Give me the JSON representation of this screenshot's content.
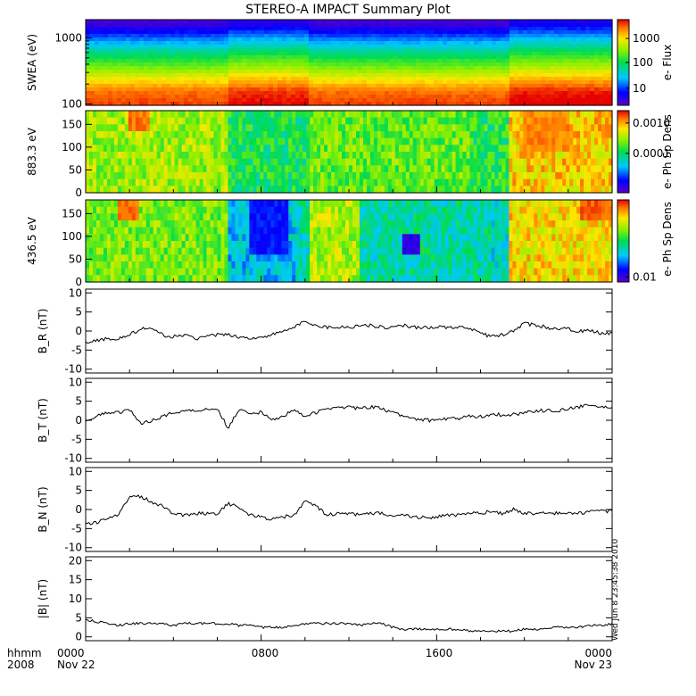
{
  "title": "STEREO-A IMPACT Summary Plot",
  "timestamp": "Wed Jun 8 23:45:38 2010",
  "colors": {
    "line": "#000000",
    "frame": "#000000"
  },
  "x_axis": {
    "row1_labels": [
      "hhmm",
      "0000",
      "0800",
      "1600",
      "0000"
    ],
    "row2_labels": [
      "2008",
      "Nov 22",
      "Nov 23"
    ]
  },
  "chart_data": [
    {
      "type": "heatmap",
      "ylabel": "SWEA (eV)",
      "yscale": "log",
      "ylim": [
        95,
        1900
      ],
      "yticks": [
        "1000",
        "100"
      ],
      "colorbar_label": "e- Flux",
      "colorbar_scale": "log",
      "colorbar_ticks": [
        "1000",
        "100",
        "10"
      ],
      "colorbar_range": [
        4,
        6000
      ],
      "description_of_bands": "high energy low flux (blue/violet) at top, mid energies green, low energies ~100 eV red/orange",
      "energy_flux_profile": {
        "energy_ev": [
          1900,
          1500,
          1200,
          1000,
          800,
          600,
          450,
          330,
          250,
          180,
          140,
          110,
          95
        ],
        "level": [
          0.02,
          0.08,
          0.18,
          0.28,
          0.38,
          0.48,
          0.56,
          0.64,
          0.74,
          0.82,
          0.9,
          0.93,
          0.95
        ]
      }
    },
    {
      "type": "heatmap",
      "ylabel": "883.3 eV",
      "ylim": [
        0,
        180
      ],
      "yticks": [
        "150",
        "100",
        "50",
        "0"
      ],
      "colorbar_label": "e- Ph Sp Dens",
      "colorbar_scale": "log",
      "colorbar_ticks": [
        "0.0010",
        "0.0001"
      ],
      "colorbar_range": [
        1e-05,
        0.0015
      ]
    },
    {
      "type": "heatmap",
      "ylabel": "436.5 eV",
      "ylim": [
        0,
        180
      ],
      "yticks": [
        "150",
        "100",
        "50",
        "0"
      ],
      "colorbar_label": "e- Ph Sp Dens",
      "colorbar_scale": "log",
      "colorbar_ticks": [
        "0.01"
      ],
      "colorbar_range": [
        0.008,
        0.05
      ]
    },
    {
      "type": "line",
      "ylabel": "B_R (nT)",
      "ylim": [
        -11,
        11
      ],
      "yticks": [
        "10",
        "5",
        "0",
        "-5",
        "-10"
      ],
      "x_hours": [
        0,
        0.5,
        1,
        1.5,
        2,
        2.5,
        3,
        3.5,
        4,
        4.5,
        5,
        5.5,
        6,
        6.5,
        7,
        7.5,
        8,
        8.5,
        9,
        9.5,
        10,
        10.5,
        11,
        11.5,
        12,
        12.5,
        13,
        13.5,
        14,
        14.5,
        15,
        15.5,
        16,
        16.5,
        17,
        17.5,
        18,
        18.5,
        19,
        19.5,
        20,
        20.5,
        21,
        21.5,
        22,
        22.5,
        23,
        23.5,
        24
      ],
      "values": [
        -3,
        -2.5,
        -2,
        -2,
        -1,
        0.5,
        0.5,
        -1,
        -1.5,
        -1,
        -2,
        -1.5,
        -1,
        -1,
        -1.5,
        -2,
        -1.5,
        -1,
        0,
        1,
        2.5,
        1.5,
        1,
        1,
        1,
        1.5,
        1.5,
        1,
        1,
        1.5,
        1,
        1,
        1,
        1,
        1,
        0.5,
        -0.5,
        -1.5,
        -1,
        0,
        2,
        1.5,
        1,
        0.5,
        0.5,
        0,
        0,
        -0.5,
        -0.5
      ]
    },
    {
      "type": "line",
      "ylabel": "B_T (nT)",
      "ylim": [
        -11,
        11
      ],
      "yticks": [
        "10",
        "5",
        "0",
        "-5",
        "-10"
      ],
      "x_hours": [
        0,
        0.5,
        1,
        1.5,
        2,
        2.5,
        3,
        3.5,
        4,
        4.5,
        5,
        5.5,
        6,
        6.5,
        7,
        7.5,
        8,
        8.5,
        9,
        9.5,
        10,
        10.5,
        11,
        11.5,
        12,
        12.5,
        13,
        13.5,
        14,
        14.5,
        15,
        15.5,
        16,
        16.5,
        17,
        17.5,
        18,
        18.5,
        19,
        19.5,
        20,
        20.5,
        21,
        21.5,
        22,
        22.5,
        23,
        23.5,
        24
      ],
      "values": [
        0,
        1,
        2,
        2,
        3,
        -1,
        0,
        1,
        2,
        2.5,
        2.5,
        3,
        3,
        -2,
        3,
        2,
        2,
        0,
        1,
        3,
        1,
        2,
        3,
        3.5,
        3.5,
        3,
        3.5,
        3,
        2,
        1,
        0.5,
        0,
        0,
        0.5,
        0.5,
        1,
        1,
        1.5,
        1.5,
        1.5,
        2,
        2.5,
        2.5,
        2.5,
        3,
        3.5,
        4,
        3.5,
        3
      ]
    },
    {
      "type": "line",
      "ylabel": "B_N (nT)",
      "ylim": [
        -11,
        11
      ],
      "yticks": [
        "10",
        "5",
        "0",
        "-5",
        "-10"
      ],
      "x_hours": [
        0,
        0.5,
        1,
        1.5,
        2,
        2.5,
        3,
        3.5,
        4,
        4.5,
        5,
        5.5,
        6,
        6.5,
        7,
        7.5,
        8,
        8.5,
        9,
        9.5,
        10,
        10.5,
        11,
        11.5,
        12,
        12.5,
        13,
        13.5,
        14,
        14.5,
        15,
        15.5,
        16,
        16.5,
        17,
        17.5,
        18,
        18.5,
        19,
        19.5,
        20,
        20.5,
        21,
        21.5,
        22,
        22.5,
        23,
        23.5,
        24
      ],
      "values": [
        -4,
        -3.5,
        -2,
        -1.5,
        3.5,
        3.5,
        2,
        1,
        -1,
        -1.5,
        -1,
        -1,
        -1,
        1.5,
        0.5,
        -1.5,
        -2,
        -2.5,
        -2,
        -1.5,
        2,
        1,
        -1.5,
        -1,
        -1,
        -1.5,
        -1,
        -1,
        -1.5,
        -1.5,
        -2,
        -2,
        -2,
        -1.5,
        -1.5,
        -1,
        -1,
        -0.5,
        -1,
        0,
        -1,
        -1,
        -1,
        -1,
        -1,
        -1,
        -0.5,
        -0.5,
        -0.5
      ]
    },
    {
      "type": "line",
      "ylabel": "|B| (nT)",
      "ylim": [
        -1,
        21
      ],
      "yticks": [
        "20",
        "15",
        "10",
        "5",
        "0"
      ],
      "x_hours": [
        0,
        0.5,
        1,
        1.5,
        2,
        2.5,
        3,
        3.5,
        4,
        4.5,
        5,
        5.5,
        6,
        6.5,
        7,
        7.5,
        8,
        8.5,
        9,
        9.5,
        10,
        10.5,
        11,
        11.5,
        12,
        12.5,
        13,
        13.5,
        14,
        14.5,
        15,
        15.5,
        16,
        16.5,
        17,
        17.5,
        18,
        18.5,
        19,
        19.5,
        20,
        20.5,
        21,
        21.5,
        22,
        22.5,
        23,
        23.5,
        24
      ],
      "values": [
        4.5,
        4,
        3.5,
        3,
        3.5,
        3.5,
        3.5,
        3.5,
        3,
        3.5,
        3.5,
        3.5,
        3.5,
        3.5,
        3,
        3,
        2.5,
        2.5,
        2.5,
        3,
        3.5,
        3.5,
        3.5,
        3.5,
        3.5,
        3,
        3.5,
        3.5,
        2.5,
        2,
        2,
        2,
        2,
        2,
        2,
        1.5,
        1.5,
        1.5,
        1.5,
        1.5,
        2,
        2,
        2,
        2.5,
        2.5,
        2.5,
        3,
        3,
        3.5
      ]
    }
  ]
}
